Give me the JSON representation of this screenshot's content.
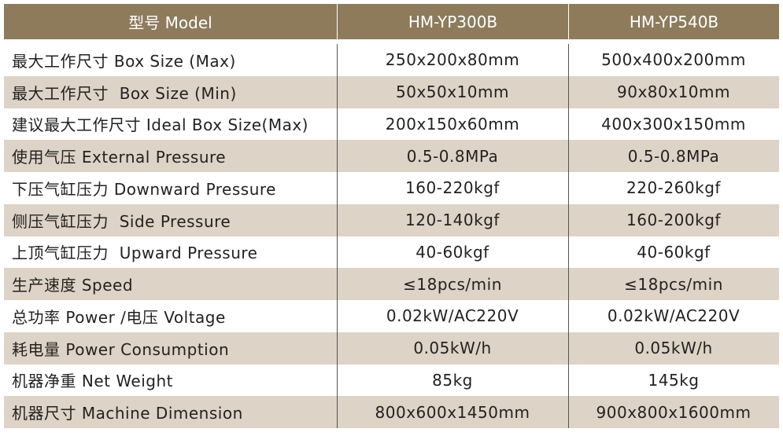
{
  "table": {
    "header": [
      "型号 Model",
      "HM-YP300B",
      "HM-YP540B"
    ],
    "rows": [
      [
        "最大工作尺寸 Box Size (Max)",
        "250x200x80mm",
        "500x400x200mm"
      ],
      [
        "最大工作尺寸  Box Size (Min)",
        "50x50x10mm",
        "90x80x10mm"
      ],
      [
        "建议最大工作尺寸 Ideal Box Size(Max)",
        "200x150x60mm",
        "400x300x150mm"
      ],
      [
        "使用气压 External Pressure",
        "0.5-0.8MPa",
        "0.5-0.8MPa"
      ],
      [
        "下压气缸压力 Downward Pressure",
        "160-220kgf",
        "220-260kgf"
      ],
      [
        "侧压气缸压力  Side Pressure",
        "120-140kgf",
        "160-200kgf"
      ],
      [
        "上顶气缸压力  Upward Pressure",
        "40-60kgf",
        "40-60kgf"
      ],
      [
        "生产速度 Speed",
        "≤18pcs/min",
        "≤18pcs/min"
      ],
      [
        "总功率 Power /电压 Voltage",
        "0.02kW/AC220V",
        "0.02kW/AC220V"
      ],
      [
        "耗电量 Power Consumption",
        "0.05kW/h",
        "0.05kW/h"
      ],
      [
        "机器净重 Net Weight",
        "85kg",
        "145kg"
      ],
      [
        "机器尺寸 Machine Dimension",
        "800x600x1450mm",
        "900x800x1600mm"
      ]
    ]
  }
}
